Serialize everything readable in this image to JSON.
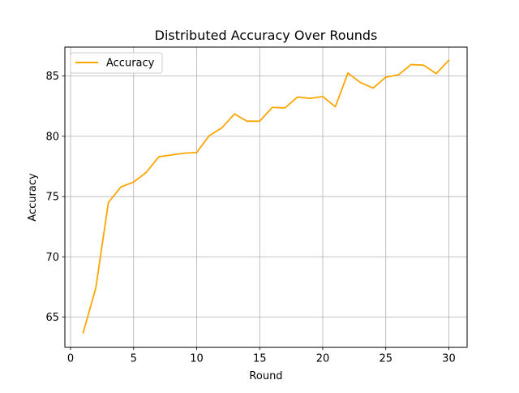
{
  "chart_data": {
    "type": "line",
    "title": "Distributed Accuracy Over Rounds",
    "xlabel": "Round",
    "ylabel": "Accuracy",
    "xlim": [
      -0.45,
      31.45
    ],
    "ylim": [
      62.5,
      87.4
    ],
    "xticks": [
      0,
      5,
      10,
      15,
      20,
      25,
      30
    ],
    "yticks": [
      65,
      70,
      75,
      80,
      85
    ],
    "grid": true,
    "legend": "top-left",
    "series": [
      {
        "name": "Accuracy",
        "color": "#ffa500",
        "x": [
          1,
          2,
          3,
          4,
          5,
          6,
          7,
          8,
          9,
          10,
          11,
          12,
          13,
          14,
          15,
          16,
          17,
          18,
          19,
          20,
          21,
          22,
          23,
          24,
          25,
          26,
          27,
          28,
          29,
          30
        ],
        "values": [
          63.7,
          67.4,
          74.5,
          75.8,
          76.2,
          77.0,
          78.3,
          78.45,
          78.6,
          78.65,
          80.05,
          80.7,
          81.85,
          81.25,
          81.25,
          82.4,
          82.35,
          83.25,
          83.15,
          83.3,
          82.45,
          85.25,
          84.45,
          84.0,
          84.9,
          85.1,
          85.95,
          85.9,
          85.2,
          86.3
        ]
      }
    ]
  }
}
